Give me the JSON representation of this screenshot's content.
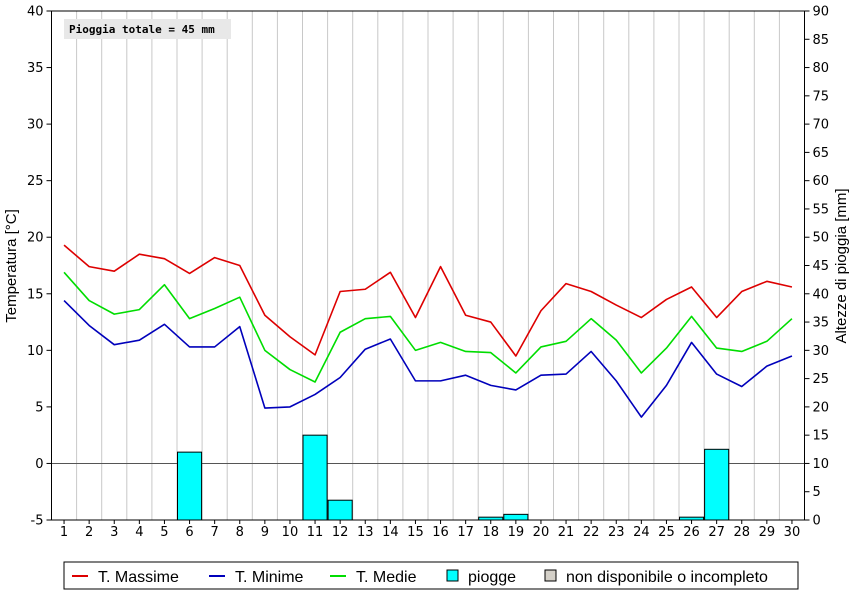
{
  "chart_data": {
    "type": "line",
    "title": "",
    "annotation": "Pioggia totale = 45 mm",
    "xlabel": "",
    "ylabel": "Temperatura [°C]",
    "y2label": "Altezze di pioggia [mm]",
    "x": [
      1,
      2,
      3,
      4,
      5,
      6,
      7,
      8,
      9,
      10,
      11,
      12,
      13,
      14,
      15,
      16,
      17,
      18,
      19,
      20,
      21,
      22,
      23,
      24,
      25,
      26,
      27,
      28,
      29,
      30
    ],
    "ylim": [
      -5,
      40
    ],
    "y2lim": [
      0,
      90
    ],
    "grid": true,
    "legend_position": "bottom",
    "series": [
      {
        "name": "T. Massime",
        "color": "#dd0000",
        "axis": "left",
        "values": [
          19.3,
          17.4,
          17.0,
          18.5,
          18.1,
          16.8,
          18.2,
          17.5,
          13.1,
          11.2,
          9.6,
          15.2,
          15.4,
          16.9,
          12.9,
          17.4,
          13.1,
          12.5,
          9.5,
          13.5,
          15.9,
          15.2,
          14.0,
          12.9,
          14.5,
          15.6,
          12.9,
          15.2,
          16.1,
          15.6
        ]
      },
      {
        "name": "T. Minime",
        "color": "#0000bb",
        "axis": "left",
        "values": [
          14.4,
          12.2,
          10.5,
          10.9,
          12.3,
          10.3,
          10.3,
          12.1,
          4.9,
          5.0,
          6.1,
          7.6,
          10.1,
          11.0,
          7.3,
          7.3,
          7.8,
          6.9,
          6.5,
          7.8,
          7.9,
          9.9,
          7.3,
          4.1,
          6.9,
          10.7,
          7.9,
          6.8,
          8.6,
          9.5
        ]
      },
      {
        "name": "T. Medie",
        "color": "#00dd00",
        "axis": "left",
        "values": [
          16.9,
          14.4,
          13.2,
          13.6,
          15.8,
          12.8,
          13.7,
          14.7,
          10.0,
          8.3,
          7.2,
          11.6,
          12.8,
          13.0,
          10.0,
          10.7,
          9.9,
          9.8,
          8.0,
          10.3,
          10.8,
          12.8,
          10.9,
          8.0,
          10.2,
          13.0,
          10.2,
          9.9,
          10.8,
          12.8
        ]
      },
      {
        "name": "piogge",
        "color": "#00ffff",
        "type": "bar",
        "axis": "right",
        "values": [
          0,
          0,
          0,
          0,
          0,
          12,
          0,
          0,
          0,
          0,
          15,
          3.5,
          0,
          0,
          0,
          0,
          0,
          0.5,
          1,
          0,
          0,
          0,
          0,
          0,
          0,
          0.5,
          12.5,
          0,
          0,
          0
        ]
      }
    ],
    "legend": [
      {
        "label": "T. Massime",
        "kind": "line",
        "color": "#dd0000"
      },
      {
        "label": "T. Minime",
        "kind": "line",
        "color": "#0000bb"
      },
      {
        "label": "T. Medie",
        "kind": "line",
        "color": "#00dd00"
      },
      {
        "label": "piogge",
        "kind": "box",
        "color": "#00ffff"
      },
      {
        "label": "non disponibile o incompleto",
        "kind": "box",
        "color": "#d4d0c8"
      }
    ]
  }
}
